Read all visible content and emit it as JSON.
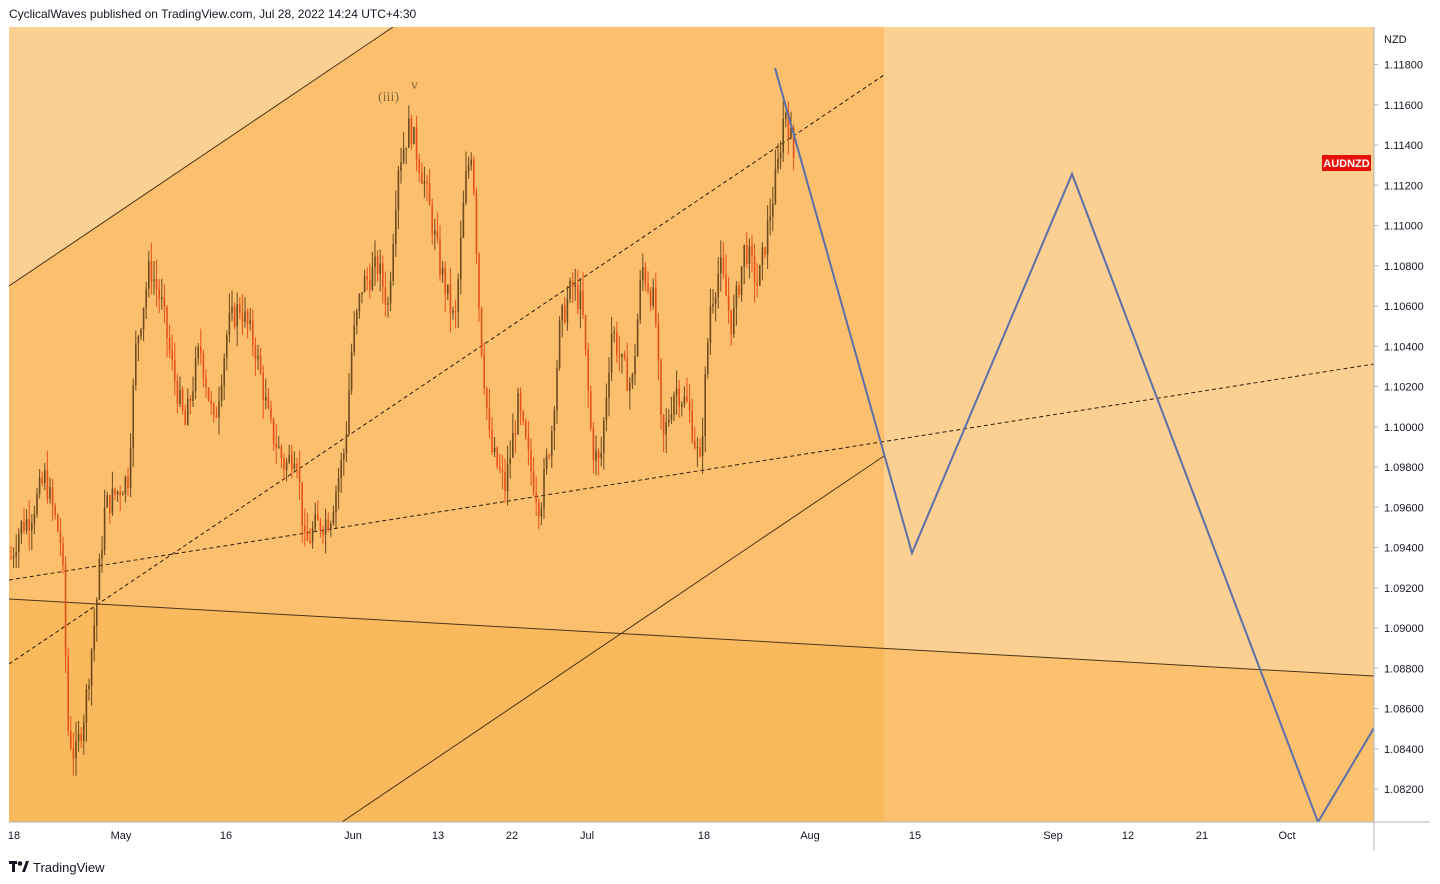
{
  "header": {
    "text": "CyclicalWaves published on TradingView.com, Jul 28, 2022 14:24 UTC+4:30"
  },
  "footer": {
    "brand": "TradingView"
  },
  "chart_data": {
    "type": "candlestick",
    "symbol": "AUDNZD",
    "currency_label": "NZD",
    "y_ticks": [
      "1.11800",
      "1.11600",
      "1.11400",
      "1.11200",
      "1.11000",
      "1.10800",
      "1.10600",
      "1.10400",
      "1.10200",
      "1.10000",
      "1.09800",
      "1.09600",
      "1.09400",
      "1.09200",
      "1.09000",
      "1.08800",
      "1.08600",
      "1.08400",
      "1.08200"
    ],
    "ylim": [
      1.0802,
      1.119
    ],
    "x_ticks": [
      "18",
      "May",
      "16",
      "Jun",
      "13",
      "22",
      "Jul",
      "18",
      "Aug",
      "15",
      "Sep",
      "12",
      "21",
      "Oct"
    ],
    "wave_labels": [
      "(iii)",
      "v"
    ],
    "last_price": 1.1131,
    "colors": {
      "up": "#6b4a1e",
      "down": "#e8501a",
      "fill_main": "#fbbf6e",
      "fill_light": "#fcd092",
      "fill_dark": "#fbb450",
      "projection": "#5b6fa8",
      "badge": "#e8100b"
    }
  }
}
